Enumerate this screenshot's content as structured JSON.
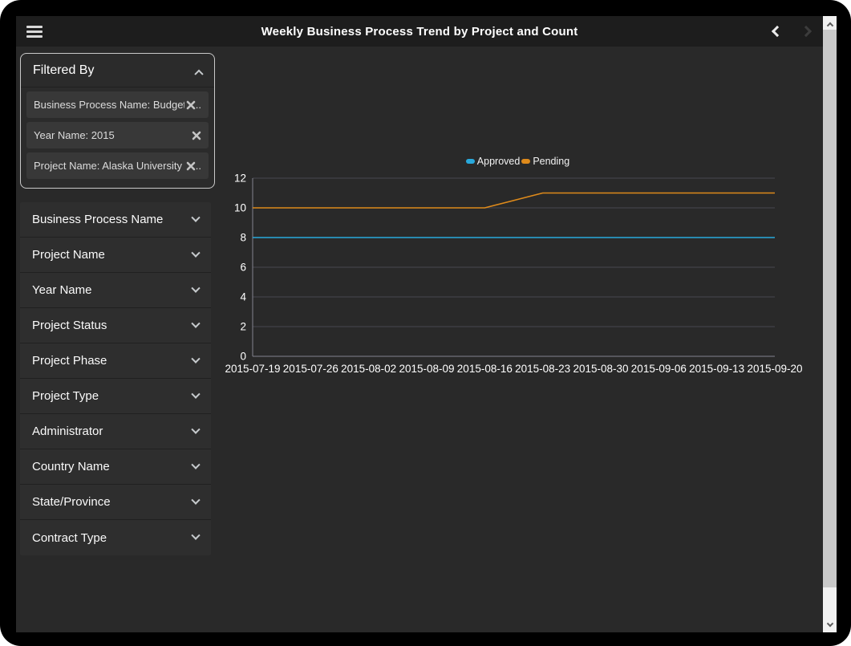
{
  "header": {
    "title": "Weekly Business Process Trend by Project and Count"
  },
  "filter_panel": {
    "title": "Filtered By",
    "chips": [
      {
        "label": "Business Process Name: Budget",
        "suffix": ".."
      },
      {
        "label": "Year Name: 2015",
        "suffix": ""
      },
      {
        "label": "Project Name: Alaska University",
        "suffix": ".."
      }
    ]
  },
  "accordion": {
    "items": [
      {
        "label": "Business Process Name"
      },
      {
        "label": "Project Name"
      },
      {
        "label": "Year Name"
      },
      {
        "label": "Project Status"
      },
      {
        "label": "Project Phase"
      },
      {
        "label": "Project Type"
      },
      {
        "label": "Administrator"
      },
      {
        "label": "Country Name"
      },
      {
        "label": "State/Province"
      },
      {
        "label": "Contract Type"
      }
    ]
  },
  "chart_data": {
    "type": "line",
    "title": "Weekly Business Process Trend by Project and Count",
    "categories": [
      "2015-07-19",
      "2015-07-26",
      "2015-08-02",
      "2015-08-09",
      "2015-08-16",
      "2015-08-23",
      "2015-08-30",
      "2015-09-06",
      "2015-09-13",
      "2015-09-20"
    ],
    "series": [
      {
        "name": "Approved",
        "color": "#29a9dc",
        "values": [
          8,
          8,
          8,
          8,
          8,
          8,
          8,
          8,
          8,
          8
        ]
      },
      {
        "name": "Pending",
        "color": "#de8a1b",
        "values": [
          10,
          10,
          10,
          10,
          10,
          11,
          11,
          11,
          11,
          11
        ]
      }
    ],
    "xlabel": "",
    "ylabel": "",
    "ylim": [
      0,
      12
    ],
    "yticks": [
      0,
      2,
      4,
      6,
      8,
      10,
      12
    ],
    "grid": true,
    "legend_position": "top-center",
    "grid_color": "#46464f",
    "axis_color": "#84848f",
    "tick_color": "#ffffff"
  },
  "colors": {
    "frame": "#000000",
    "header_bg": "#1d1d1d",
    "content_bg": "#292929",
    "panel_bg": "#2b2b2b",
    "chip_bg": "#383838",
    "approved": "#29a9dc",
    "pending": "#de8a1b"
  }
}
